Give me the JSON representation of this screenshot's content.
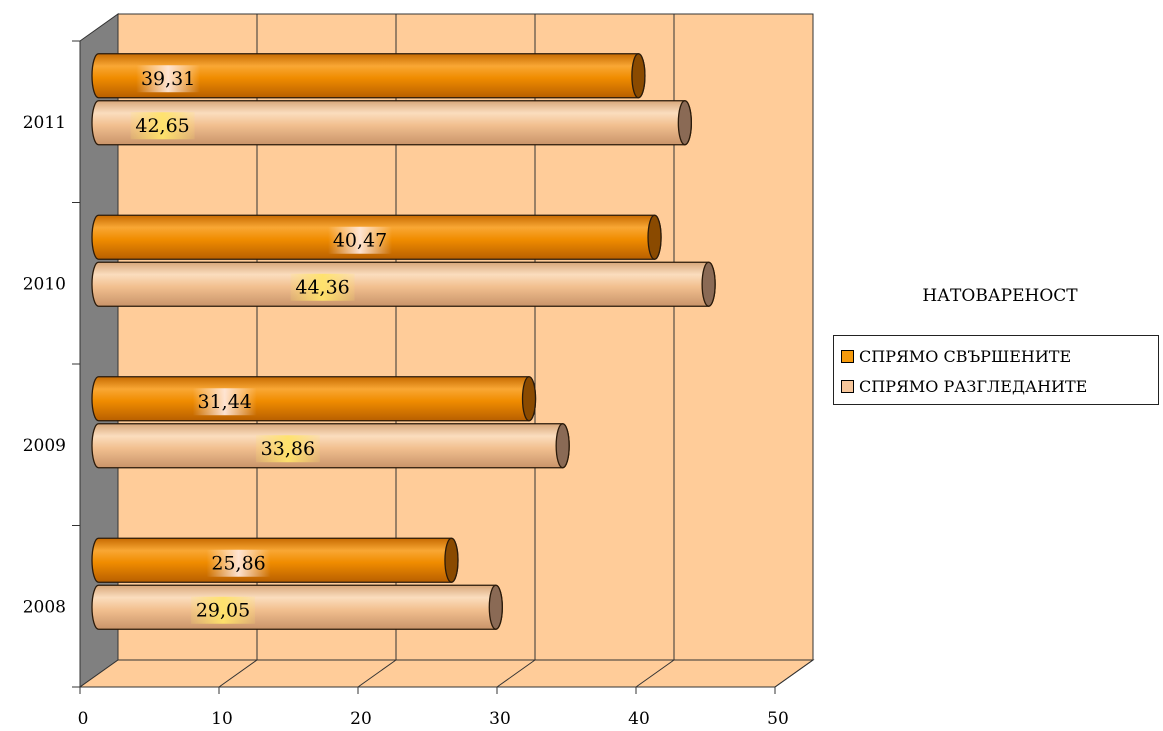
{
  "chart_data": {
    "type": "bar",
    "orientation": "horizontal",
    "categories": [
      "2008",
      "2009",
      "2010",
      "2011"
    ],
    "series": [
      {
        "name": "СПРЯМО СВЪРШЕНИТЕ",
        "values": [
          25.86,
          31.44,
          40.47,
          39.31
        ],
        "labels": [
          "25,86",
          "31,44",
          "40,47",
          "39,31"
        ],
        "color": "#F59A0D"
      },
      {
        "name": "СПРЯМО РАЗГЛЕДАНИТЕ",
        "values": [
          29.05,
          33.86,
          44.36,
          42.65
        ],
        "labels": [
          "29,05",
          "33,86",
          "44,36",
          "42,65"
        ],
        "color": "#F7C69A"
      }
    ],
    "x_ticks": [
      "0",
      "10",
      "20",
      "30",
      "40",
      "50"
    ],
    "xlim": [
      0,
      50
    ],
    "legend_title": "НАТОВАРЕНОСТ",
    "legend_position": "right",
    "grid": true,
    "wall_color": "#FFCC99",
    "side_wall_color": "#808080",
    "label_highlight_colors": [
      "#FFE8DC",
      "#FFE36A"
    ]
  }
}
